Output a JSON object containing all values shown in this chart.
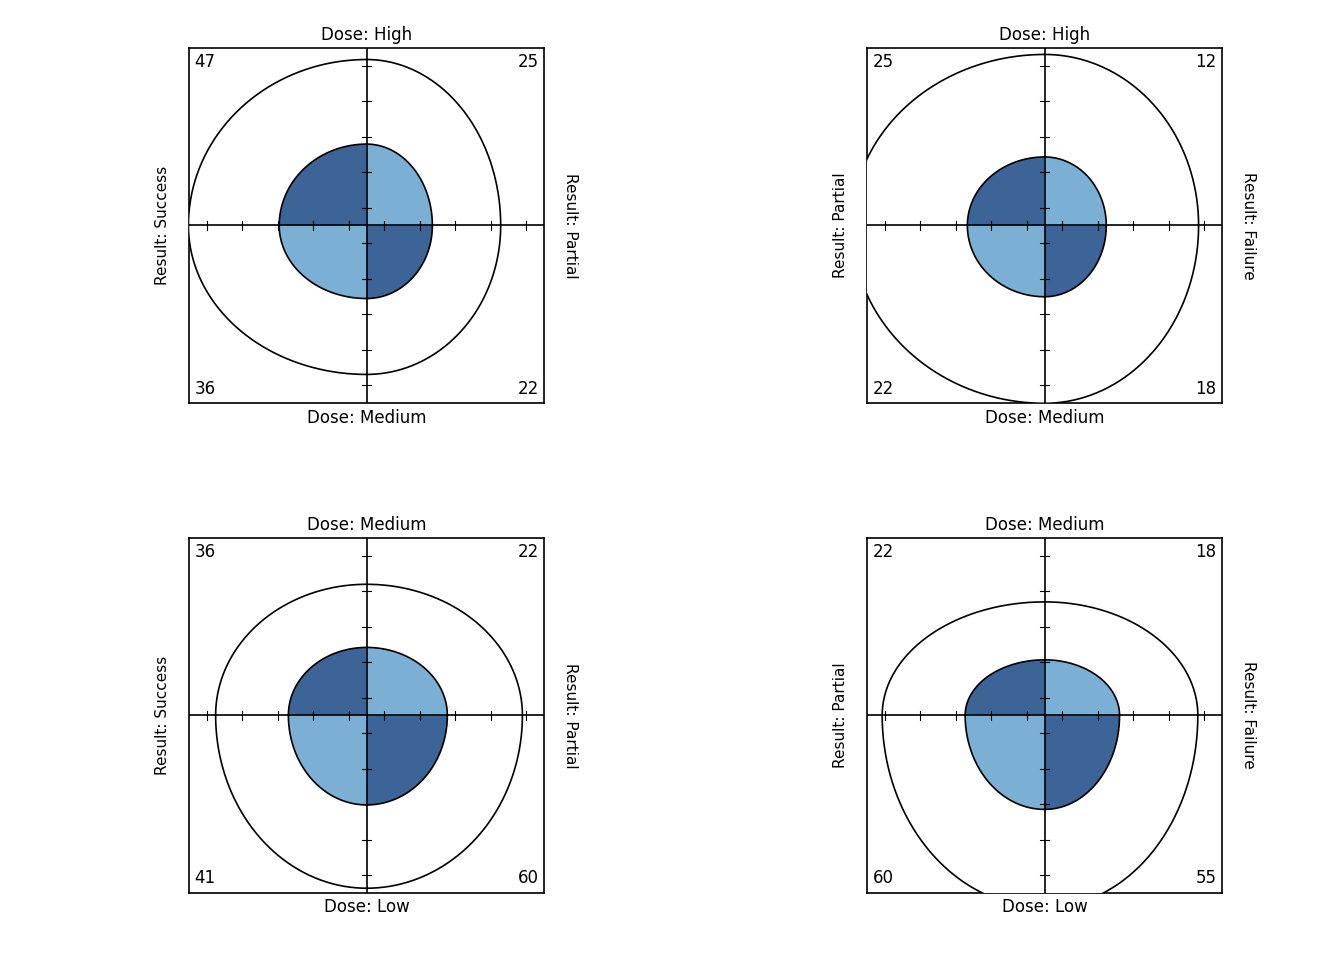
{
  "plots": [
    {
      "title_top": "Dose: High",
      "title_bottom": "Dose: Medium",
      "label_left": "Result: Success",
      "label_right": "Result: Partial",
      "counts": {
        "TL": 47,
        "TR": 25,
        "BL": 36,
        "BR": 22
      },
      "row": 0,
      "col": 0
    },
    {
      "title_top": "Dose: High",
      "title_bottom": "Dose: Medium",
      "label_left": "Result: Partial",
      "label_right": "Result: Failure",
      "counts": {
        "TL": 25,
        "TR": 12,
        "BL": 22,
        "BR": 18
      },
      "row": 0,
      "col": 1
    },
    {
      "title_top": "Dose: Medium",
      "title_bottom": "Dose: Low",
      "label_left": "Result: Success",
      "label_right": "Result: Partial",
      "counts": {
        "TL": 36,
        "TR": 22,
        "BL": 41,
        "BR": 60
      },
      "row": 1,
      "col": 0
    },
    {
      "title_top": "Dose: Medium",
      "title_bottom": "Dose: Low",
      "label_left": "Result: Partial",
      "label_right": "Result: Failure",
      "counts": {
        "TL": 22,
        "TR": 18,
        "BL": 60,
        "BR": 55
      },
      "row": 1,
      "col": 1
    }
  ],
  "color_concordant": "#3d6496",
  "color_discordant": "#7bafd4",
  "background_color": "#ffffff"
}
